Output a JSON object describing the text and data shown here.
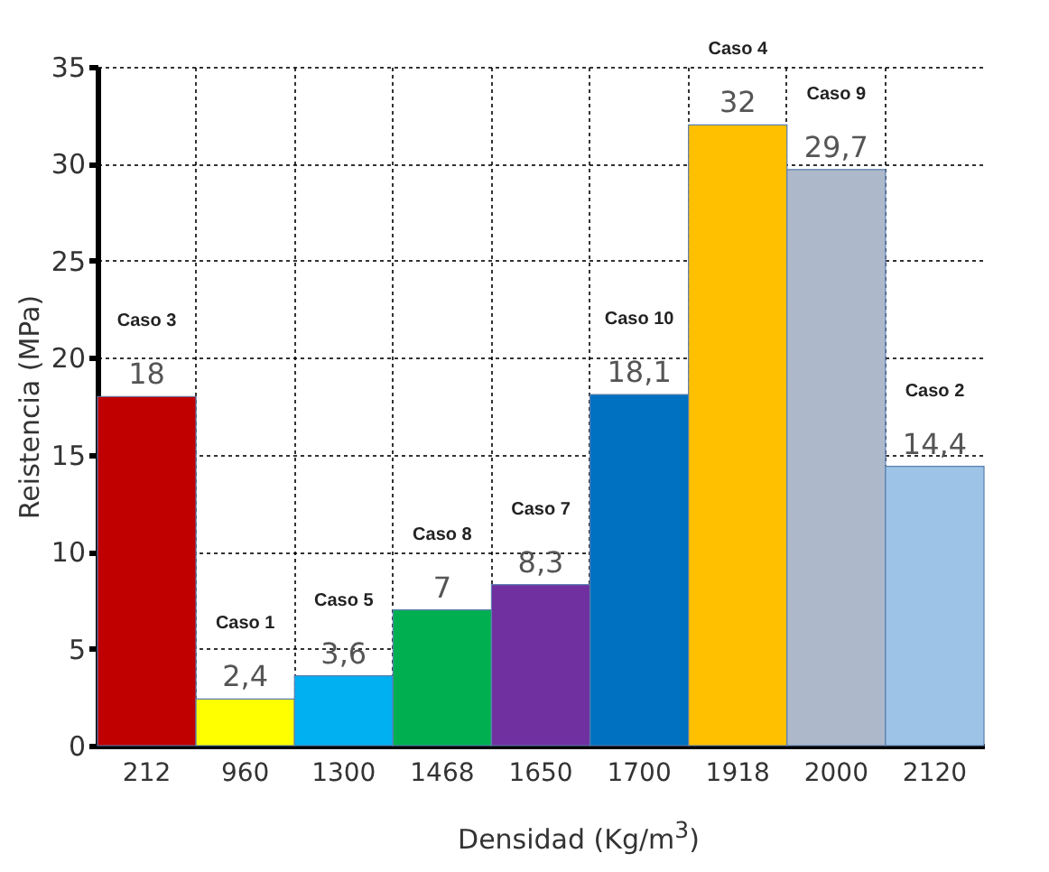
{
  "chart_data": {
    "type": "bar",
    "xlabel": "Densidad (Kg/m$^{3}$)",
    "ylabel": "Reistencia (MPa)",
    "categories": [
      "212",
      "960",
      "1300",
      "1468",
      "1650",
      "1700",
      "1918",
      "2000",
      "2120"
    ],
    "values": [
      18,
      2.4,
      3.6,
      7,
      8.3,
      18.1,
      32,
      29.7,
      14.4
    ],
    "value_labels": [
      "18",
      "2,4",
      "3,6",
      "7",
      "8,3",
      "18,1",
      "32",
      "29,7",
      "14,4"
    ],
    "colors": [
      "#c00000",
      "#ffff00",
      "#00b0f0",
      "#00b050",
      "#7030a0",
      "#0070c0",
      "#ffc000",
      "#adb9ca",
      "#9dc3e6"
    ],
    "ylim": [
      0,
      35
    ],
    "yticks": [
      0,
      5,
      10,
      15,
      20,
      25,
      30,
      35
    ],
    "grid": true,
    "annotations": [
      "Caso 3",
      "Caso 1",
      "Caso 5",
      "Caso 8",
      "Caso 7",
      "Caso 10",
      "Caso 4",
      "Caso 9",
      "Caso 2"
    ]
  }
}
